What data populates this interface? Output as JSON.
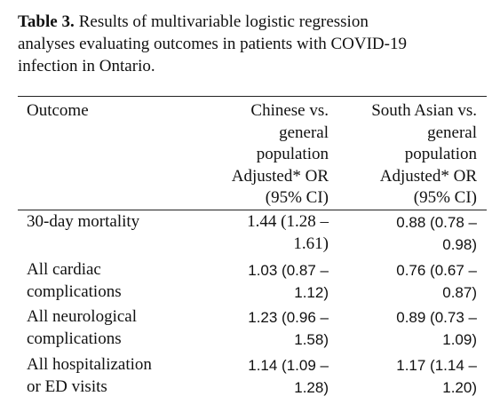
{
  "caption": {
    "label": "Table 3.",
    "lines": [
      "Results of multivariable logistic regression",
      "analyses evaluating outcomes in patients with COVID-19",
      "infection in Ontario."
    ]
  },
  "table": {
    "header": [
      [
        "Outcome"
      ],
      [
        "Chinese vs.",
        "general",
        "population",
        "Adjusted* OR",
        "(95% CI)"
      ],
      [
        "South Asian vs.",
        "general",
        "population",
        "Adjusted* OR",
        "(95% CI)"
      ]
    ],
    "rows": [
      [
        [
          "30-day mortality"
        ],
        [
          "1.44 (1.28 –",
          "1.61)"
        ],
        [
          "0.88 (0.78 –",
          "0.98)"
        ]
      ],
      [
        [
          "All cardiac",
          "complications"
        ],
        [
          "1.03 (0.87 –",
          "1.12)"
        ],
        [
          "0.76 (0.67 –",
          "0.87)"
        ]
      ],
      [
        [
          "All neurological",
          "complications"
        ],
        [
          "1.23 (0.96 –",
          "1.58)"
        ],
        [
          "0.89 (0.73 –",
          "1.09)"
        ]
      ],
      [
        [
          "All hospitalization",
          "or ED visits"
        ],
        [
          "1.14 (1.09 –",
          "1.28)"
        ],
        [
          "1.17 (1.14 –",
          "1.20)"
        ]
      ]
    ]
  }
}
